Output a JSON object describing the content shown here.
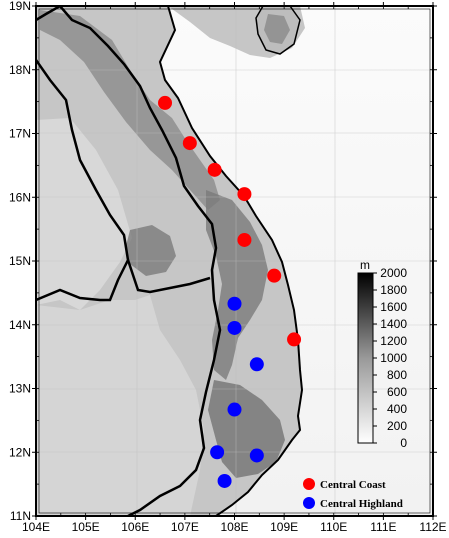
{
  "map": {
    "lon_labels": [
      "104E",
      "105E",
      "106E",
      "107E",
      "108E",
      "109E",
      "110E",
      "111E",
      "112E"
    ],
    "lon_values": [
      104,
      105,
      106,
      107,
      108,
      109,
      110,
      111,
      112
    ],
    "lat_labels": [
      "11N",
      "12N",
      "13N",
      "14N",
      "15N",
      "16N",
      "17N",
      "18N",
      "19N"
    ],
    "lat_values": [
      11,
      12,
      13,
      14,
      15,
      16,
      17,
      18,
      19
    ],
    "extent": {
      "lon": [
        104,
        112
      ],
      "lat": [
        11,
        19
      ]
    }
  },
  "colorbar": {
    "unit": "m",
    "ticks": [
      "0",
      "200",
      "400",
      "600",
      "800",
      "1000",
      "1200",
      "1400",
      "1600",
      "1800",
      "2000"
    ],
    "range": [
      0,
      2000
    ]
  },
  "legend": {
    "items": [
      {
        "label": "Central Coast",
        "color": "#ff0000"
      },
      {
        "label": "Central Highland",
        "color": "#0000ff"
      }
    ]
  },
  "stations": {
    "central_coast": [
      {
        "lon": 106.6,
        "lat": 17.48
      },
      {
        "lon": 107.1,
        "lat": 16.85
      },
      {
        "lon": 107.6,
        "lat": 16.43
      },
      {
        "lon": 108.2,
        "lat": 16.05
      },
      {
        "lon": 108.2,
        "lat": 15.33
      },
      {
        "lon": 108.8,
        "lat": 14.77
      },
      {
        "lon": 109.2,
        "lat": 13.77
      }
    ],
    "central_highland": [
      {
        "lon": 108.0,
        "lat": 14.33
      },
      {
        "lon": 108.0,
        "lat": 13.95
      },
      {
        "lon": 108.45,
        "lat": 13.38
      },
      {
        "lon": 108.0,
        "lat": 12.67
      },
      {
        "lon": 107.65,
        "lat": 12.0
      },
      {
        "lon": 108.45,
        "lat": 11.95
      },
      {
        "lon": 107.8,
        "lat": 11.55
      }
    ]
  }
}
